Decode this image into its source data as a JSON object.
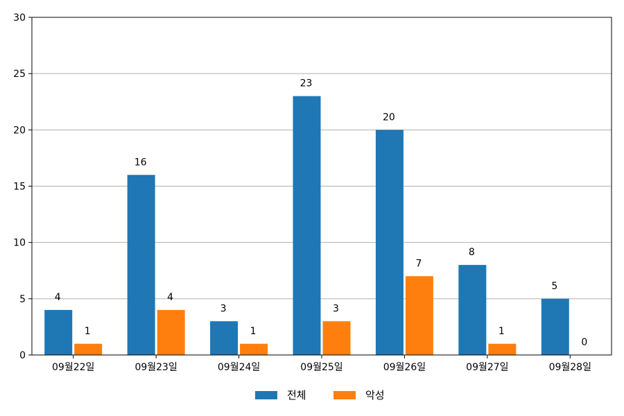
{
  "chart_data": {
    "type": "bar",
    "categories": [
      "09월22일",
      "09월23일",
      "09월24일",
      "09월25일",
      "09월26일",
      "09월27일",
      "09월28일"
    ],
    "series": [
      {
        "name": "전체",
        "color": "#1f77b4",
        "values": [
          4,
          16,
          3,
          23,
          20,
          8,
          5
        ]
      },
      {
        "name": "악성",
        "color": "#ff7f0e",
        "values": [
          1,
          4,
          1,
          3,
          7,
          1,
          0
        ]
      }
    ],
    "ylim": [
      0,
      30
    ],
    "yticks": [
      0,
      5,
      10,
      15,
      20,
      25,
      30
    ],
    "grid": "y",
    "legend_position": "bottom-center",
    "data_labels": true
  }
}
